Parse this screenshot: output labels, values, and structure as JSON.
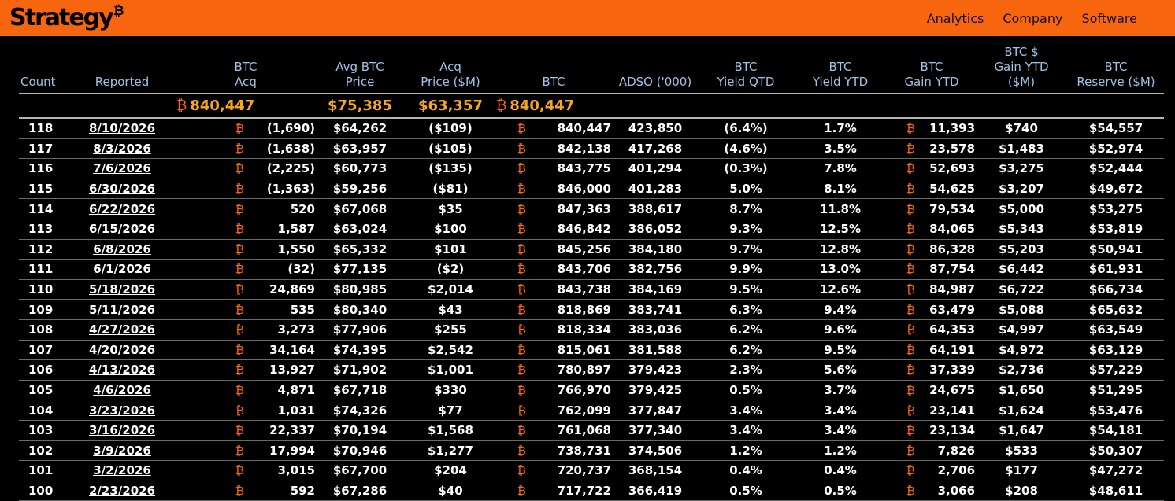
{
  "brand": {
    "name": "Strategy",
    "mark": "₿"
  },
  "nav": [
    "Analytics",
    "Company",
    "Software"
  ],
  "btc_symbol": "₿",
  "headers": {
    "count": "Count",
    "reported": "Reported",
    "btc_acq": [
      "BTC",
      "Acq"
    ],
    "avg_price": [
      "Avg BTC",
      "Price"
    ],
    "acq_price": [
      "Acq",
      "Price ($M)"
    ],
    "btc": "BTC",
    "adso": "ADSO ('000)",
    "yield_qtd": [
      "BTC",
      "Yield QTD"
    ],
    "yield_ytd": [
      "BTC",
      "Yield YTD"
    ],
    "gain_ytd": [
      "BTC",
      "Gain YTD"
    ],
    "gain_usd": [
      "BTC $",
      "Gain YTD",
      "($M)"
    ],
    "reserve": [
      "BTC",
      "Reserve ($M)"
    ]
  },
  "totals": {
    "btc_acq": "840,447",
    "avg_price": "$75,385",
    "acq_price": "$63,357",
    "btc": "840,447"
  },
  "rows": [
    [
      "118",
      "8/10/2026",
      "(1,690)",
      "$64,262",
      "($109)",
      "840,447",
      "423,850",
      "(6.4%)",
      "1.7%",
      "11,393",
      "$740",
      "$54,557"
    ],
    [
      "117",
      "8/3/2026",
      "(1,638)",
      "$63,957",
      "($105)",
      "842,138",
      "417,268",
      "(4.6%)",
      "3.5%",
      "23,578",
      "$1,483",
      "$52,974"
    ],
    [
      "116",
      "7/6/2026",
      "(2,225)",
      "$60,773",
      "($135)",
      "843,775",
      "401,294",
      "(0.3%)",
      "7.8%",
      "52,693",
      "$3,275",
      "$52,444"
    ],
    [
      "115",
      "6/30/2026",
      "(1,363)",
      "$59,256",
      "($81)",
      "846,000",
      "401,283",
      "5.0%",
      "8.1%",
      "54,625",
      "$3,207",
      "$49,672"
    ],
    [
      "114",
      "6/22/2026",
      "520",
      "$67,068",
      "$35",
      "847,363",
      "388,617",
      "8.7%",
      "11.8%",
      "79,534",
      "$5,000",
      "$53,275"
    ],
    [
      "113",
      "6/15/2026",
      "1,587",
      "$63,024",
      "$100",
      "846,842",
      "386,052",
      "9.3%",
      "12.5%",
      "84,065",
      "$5,343",
      "$53,819"
    ],
    [
      "112",
      "6/8/2026",
      "1,550",
      "$65,332",
      "$101",
      "845,256",
      "384,180",
      "9.7%",
      "12.8%",
      "86,328",
      "$5,203",
      "$50,941"
    ],
    [
      "111",
      "6/1/2026",
      "(32)",
      "$77,135",
      "($2)",
      "843,706",
      "382,756",
      "9.9%",
      "13.0%",
      "87,754",
      "$6,442",
      "$61,931"
    ],
    [
      "110",
      "5/18/2026",
      "24,869",
      "$80,985",
      "$2,014",
      "843,738",
      "384,169",
      "9.5%",
      "12.6%",
      "84,987",
      "$6,722",
      "$66,734"
    ],
    [
      "109",
      "5/11/2026",
      "535",
      "$80,340",
      "$43",
      "818,869",
      "383,741",
      "6.3%",
      "9.4%",
      "63,479",
      "$5,088",
      "$65,632"
    ],
    [
      "108",
      "4/27/2026",
      "3,273",
      "$77,906",
      "$255",
      "818,334",
      "383,036",
      "6.2%",
      "9.6%",
      "64,353",
      "$4,997",
      "$63,549"
    ],
    [
      "107",
      "4/20/2026",
      "34,164",
      "$74,395",
      "$2,542",
      "815,061",
      "381,588",
      "6.2%",
      "9.5%",
      "64,191",
      "$4,972",
      "$63,129"
    ],
    [
      "106",
      "4/13/2026",
      "13,927",
      "$71,902",
      "$1,001",
      "780,897",
      "379,423",
      "2.3%",
      "5.6%",
      "37,339",
      "$2,736",
      "$57,229"
    ],
    [
      "105",
      "4/6/2026",
      "4,871",
      "$67,718",
      "$330",
      "766,970",
      "379,425",
      "0.5%",
      "3.7%",
      "24,675",
      "$1,650",
      "$51,295"
    ],
    [
      "104",
      "3/23/2026",
      "1,031",
      "$74,326",
      "$77",
      "762,099",
      "377,847",
      "3.4%",
      "3.4%",
      "23,141",
      "$1,624",
      "$53,476"
    ],
    [
      "103",
      "3/16/2026",
      "22,337",
      "$70,194",
      "$1,568",
      "761,068",
      "377,340",
      "3.4%",
      "3.4%",
      "23,134",
      "$1,647",
      "$54,181"
    ],
    [
      "102",
      "3/9/2026",
      "17,994",
      "$70,946",
      "$1,277",
      "738,731",
      "374,506",
      "1.2%",
      "1.2%",
      "7,826",
      "$533",
      "$50,307"
    ],
    [
      "101",
      "3/2/2026",
      "3,015",
      "$67,700",
      "$204",
      "720,737",
      "368,154",
      "0.4%",
      "0.4%",
      "2,706",
      "$177",
      "$47,272"
    ],
    [
      "100",
      "2/23/2026",
      "592",
      "$67,286",
      "$40",
      "717,722",
      "366,419",
      "0.5%",
      "0.5%",
      "3,066",
      "$208",
      "$48,611"
    ]
  ]
}
